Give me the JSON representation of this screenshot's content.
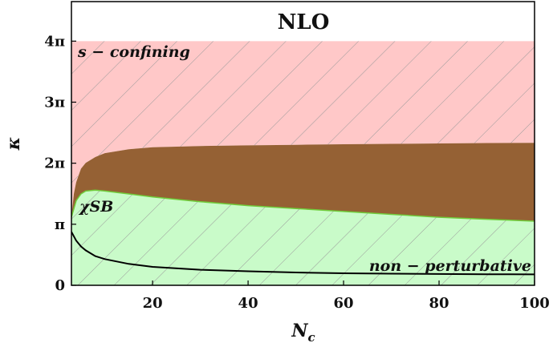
{
  "chart_data": {
    "type": "area",
    "title": "NLO",
    "xlabel": "N_c",
    "xlabel_main": "N",
    "xlabel_sub": "c",
    "ylabel": "κ",
    "xlim": [
      3,
      100
    ],
    "ylim": [
      0,
      14.6
    ],
    "x_ticks": [
      20,
      40,
      60,
      80,
      100
    ],
    "y_ticks": [
      {
        "value": 0,
        "label": "0"
      },
      {
        "value": 3.1416,
        "label": "π"
      },
      {
        "value": 6.2832,
        "label": "2π"
      },
      {
        "value": 9.4248,
        "label": "3π"
      },
      {
        "value": 12.566,
        "label": "4π"
      }
    ],
    "regions": [
      {
        "name": "s − confining",
        "upper": 12.566,
        "color": "#ffc8c8",
        "hatched": true
      },
      {
        "name": "χSB",
        "color": "#956134"
      },
      {
        "name": "non − perturbative",
        "color": "#c9fbc9",
        "hatched": true
      }
    ],
    "annotations": {
      "s_confining": "s − confining",
      "chi_sb": "χSB",
      "non_perturbative": "non − perturbative"
    },
    "series": [
      {
        "key": "confinement_lower",
        "x": [
          3,
          3.5,
          4,
          5,
          6,
          8,
          10,
          15,
          20,
          30,
          40,
          50,
          60,
          70,
          80,
          90,
          100
        ],
        "values": [
          3.5,
          4.7,
          5.3,
          6.0,
          6.3,
          6.6,
          6.8,
          7.0,
          7.1,
          7.17,
          7.2,
          7.23,
          7.26,
          7.28,
          7.3,
          7.32,
          7.33
        ]
      },
      {
        "key": "chiral_boundary",
        "x": [
          3,
          4,
          5,
          6,
          8,
          10,
          15,
          20,
          30,
          40,
          50,
          60,
          70,
          80,
          90,
          100
        ],
        "values": [
          3.5,
          4.35,
          4.7,
          4.85,
          4.9,
          4.85,
          4.7,
          4.55,
          4.3,
          4.1,
          3.95,
          3.8,
          3.65,
          3.5,
          3.4,
          3.3
        ]
      },
      {
        "key": "perturbative_limit",
        "x": [
          3,
          4,
          5,
          6,
          8,
          10,
          15,
          20,
          30,
          40,
          50,
          60,
          70,
          80,
          90,
          100
        ],
        "values": [
          2.75,
          2.3,
          2.0,
          1.8,
          1.5,
          1.35,
          1.1,
          0.95,
          0.8,
          0.72,
          0.66,
          0.62,
          0.6,
          0.58,
          0.57,
          0.56
        ]
      }
    ],
    "colors": {
      "confining": "#ffc8c8",
      "chiral": "#956134",
      "nonpert": "#c9fbc9",
      "hatch": "#9a9a9a",
      "boundary_green": "#6fcc3a",
      "curve": "#000000"
    }
  }
}
